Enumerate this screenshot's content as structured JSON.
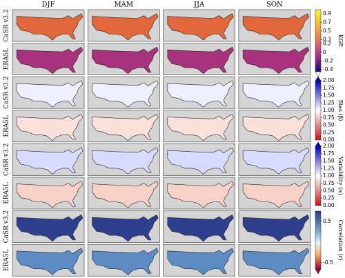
{
  "columns": [
    "DJF",
    "MAM",
    "JJA",
    "SON"
  ],
  "rows": [
    "CaSR v3.2",
    "ERA5L",
    "CaSR v3.2",
    "ERA5L",
    "CaSR v3.2",
    "ERA5L",
    "CaSR v3.2",
    "ERA5L"
  ],
  "colorbars": [
    {
      "label": "KGE",
      "lim": [
        -0.45,
        1.0
      ],
      "ticks": [
        0.9,
        0.7,
        0.5,
        0.3,
        0.2,
        0.0,
        -0.2,
        -0.4
      ]
    },
    {
      "label": "Bias (β)",
      "lim": [
        0,
        2
      ],
      "ticks": [
        {
          "value": 2,
          "label": "2.00"
        },
        {
          "value": 1.75,
          "label": "1.75"
        },
        {
          "value": 1.5,
          "label": "1.50"
        },
        {
          "value": 1.25,
          "label": "1.25"
        },
        {
          "value": 1,
          "label": "1.00"
        },
        {
          "value": 0.75,
          "label": "0.75"
        },
        {
          "value": 0.5,
          "label": "0.50"
        },
        0.25,
        {
          "value": 0,
          "label": "0.00"
        }
      ]
    },
    {
      "label": "Variability (α)",
      "lim": [
        0,
        2
      ],
      "ticks": [
        {
          "value": 2,
          "label": "2.00"
        },
        {
          "value": 1.75,
          "label": "1.75"
        },
        {
          "value": 1.5,
          "label": "1.50"
        },
        {
          "value": 1.25,
          "label": "1.25"
        },
        {
          "value": 1,
          "label": "1.00"
        },
        {
          "value": 0.75,
          "label": "0.75"
        },
        {
          "value": 0.5,
          "label": "0.50"
        },
        0.25,
        {
          "value": 0,
          "label": "0.00"
        }
      ]
    },
    {
      "label": "Correlation (r)",
      "lim": [
        -0.65,
        0.75
      ],
      "ticks": [
        0.5,
        -0.5
      ]
    }
  ]
}
